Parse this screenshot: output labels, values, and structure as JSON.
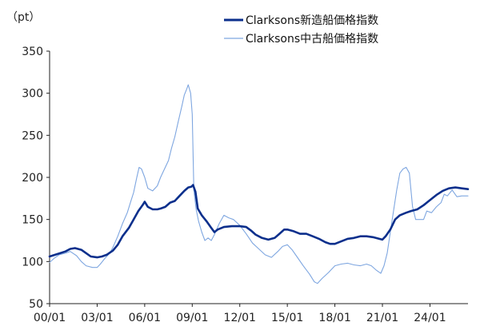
{
  "chart_data": {
    "type": "line",
    "title": "",
    "unit_label": "（pt）",
    "xlabel": "",
    "ylabel": "",
    "xlim": [
      2000.0,
      2026.4
    ],
    "ylim": [
      50,
      350
    ],
    "y_ticks": [
      50,
      100,
      150,
      200,
      250,
      300,
      350
    ],
    "x_ticks": [
      {
        "x": 2000.0,
        "label": "00/01"
      },
      {
        "x": 2003.0,
        "label": "03/01"
      },
      {
        "x": 2006.0,
        "label": "06/01"
      },
      {
        "x": 2009.0,
        "label": "09/01"
      },
      {
        "x": 2012.0,
        "label": "12/01"
      },
      {
        "x": 2015.0,
        "label": "15/01"
      },
      {
        "x": 2018.0,
        "label": "18/01"
      },
      {
        "x": 2021.0,
        "label": "21/01"
      },
      {
        "x": 2024.0,
        "label": "24/01"
      }
    ],
    "grid": false,
    "legend_position": "top-right",
    "series": [
      {
        "name": "Clarksons新造船価格指数",
        "color": "#0b2f8c",
        "style": "thick",
        "points": [
          [
            2000.0,
            106
          ],
          [
            2000.5,
            109
          ],
          [
            2001.0,
            112
          ],
          [
            2001.3,
            115
          ],
          [
            2001.6,
            116
          ],
          [
            2002.0,
            114
          ],
          [
            2002.3,
            110
          ],
          [
            2002.6,
            106
          ],
          [
            2003.0,
            105
          ],
          [
            2003.3,
            106
          ],
          [
            2003.6,
            108
          ],
          [
            2004.0,
            113
          ],
          [
            2004.3,
            120
          ],
          [
            2004.6,
            130
          ],
          [
            2005.0,
            140
          ],
          [
            2005.3,
            150
          ],
          [
            2005.6,
            160
          ],
          [
            2005.9,
            168
          ],
          [
            2006.0,
            171
          ],
          [
            2006.2,
            165
          ],
          [
            2006.5,
            162
          ],
          [
            2006.8,
            162
          ],
          [
            2007.0,
            163
          ],
          [
            2007.3,
            165
          ],
          [
            2007.6,
            170
          ],
          [
            2007.9,
            172
          ],
          [
            2008.2,
            178
          ],
          [
            2008.5,
            184
          ],
          [
            2008.75,
            188
          ],
          [
            2008.95,
            189
          ],
          [
            2009.05,
            191
          ],
          [
            2009.2,
            183
          ],
          [
            2009.35,
            163
          ],
          [
            2009.6,
            155
          ],
          [
            2009.9,
            148
          ],
          [
            2010.2,
            140
          ],
          [
            2010.4,
            135
          ],
          [
            2010.6,
            138
          ],
          [
            2011.0,
            141
          ],
          [
            2011.5,
            142
          ],
          [
            2012.0,
            142
          ],
          [
            2012.4,
            141
          ],
          [
            2012.7,
            137
          ],
          [
            2013.0,
            132
          ],
          [
            2013.4,
            128
          ],
          [
            2013.8,
            126
          ],
          [
            2014.2,
            128
          ],
          [
            2014.5,
            133
          ],
          [
            2014.8,
            138
          ],
          [
            2015.0,
            138
          ],
          [
            2015.4,
            136
          ],
          [
            2015.8,
            133
          ],
          [
            2016.2,
            133
          ],
          [
            2016.6,
            130
          ],
          [
            2017.0,
            127
          ],
          [
            2017.4,
            123
          ],
          [
            2017.7,
            121
          ],
          [
            2018.0,
            121
          ],
          [
            2018.4,
            124
          ],
          [
            2018.8,
            127
          ],
          [
            2019.2,
            128
          ],
          [
            2019.6,
            130
          ],
          [
            2020.0,
            130
          ],
          [
            2020.4,
            129
          ],
          [
            2020.8,
            127
          ],
          [
            2021.0,
            126
          ],
          [
            2021.2,
            130
          ],
          [
            2021.5,
            138
          ],
          [
            2021.8,
            150
          ],
          [
            2022.1,
            155
          ],
          [
            2022.5,
            158
          ],
          [
            2022.8,
            160
          ],
          [
            2023.2,
            162
          ],
          [
            2023.6,
            167
          ],
          [
            2024.0,
            173
          ],
          [
            2024.4,
            179
          ],
          [
            2024.8,
            184
          ],
          [
            2025.2,
            187
          ],
          [
            2025.6,
            188
          ],
          [
            2026.0,
            187
          ],
          [
            2026.4,
            186
          ]
        ]
      },
      {
        "name": "Clarksons中古船価格指数",
        "color": "#7ea6e0",
        "style": "thin",
        "points": [
          [
            2000.0,
            99
          ],
          [
            2000.3,
            104
          ],
          [
            2000.6,
            108
          ],
          [
            2001.0,
            110
          ],
          [
            2001.3,
            112
          ],
          [
            2001.7,
            107
          ],
          [
            2002.0,
            100
          ],
          [
            2002.3,
            95
          ],
          [
            2002.7,
            93
          ],
          [
            2003.0,
            93
          ],
          [
            2003.2,
            97
          ],
          [
            2003.5,
            104
          ],
          [
            2003.8,
            110
          ],
          [
            2004.0,
            117
          ],
          [
            2004.3,
            130
          ],
          [
            2004.6,
            145
          ],
          [
            2004.9,
            158
          ],
          [
            2005.1,
            170
          ],
          [
            2005.3,
            182
          ],
          [
            2005.5,
            200
          ],
          [
            2005.65,
            212
          ],
          [
            2005.8,
            210
          ],
          [
            2006.0,
            200
          ],
          [
            2006.2,
            187
          ],
          [
            2006.5,
            184
          ],
          [
            2006.8,
            190
          ],
          [
            2007.0,
            200
          ],
          [
            2007.2,
            208
          ],
          [
            2007.5,
            220
          ],
          [
            2007.7,
            235
          ],
          [
            2007.9,
            248
          ],
          [
            2008.1,
            265
          ],
          [
            2008.35,
            285
          ],
          [
            2008.5,
            298
          ],
          [
            2008.65,
            305
          ],
          [
            2008.75,
            310
          ],
          [
            2008.9,
            300
          ],
          [
            2009.0,
            275
          ],
          [
            2009.1,
            185
          ],
          [
            2009.25,
            162
          ],
          [
            2009.4,
            148
          ],
          [
            2009.6,
            135
          ],
          [
            2009.8,
            125
          ],
          [
            2010.0,
            128
          ],
          [
            2010.2,
            125
          ],
          [
            2010.4,
            132
          ],
          [
            2010.7,
            145
          ],
          [
            2011.0,
            155
          ],
          [
            2011.3,
            152
          ],
          [
            2011.6,
            150
          ],
          [
            2012.0,
            143
          ],
          [
            2012.4,
            133
          ],
          [
            2012.8,
            122
          ],
          [
            2013.2,
            115
          ],
          [
            2013.6,
            108
          ],
          [
            2014.0,
            105
          ],
          [
            2014.4,
            112
          ],
          [
            2014.7,
            118
          ],
          [
            2015.0,
            120
          ],
          [
            2015.3,
            114
          ],
          [
            2015.6,
            106
          ],
          [
            2016.0,
            95
          ],
          [
            2016.4,
            85
          ],
          [
            2016.7,
            76
          ],
          [
            2016.9,
            74
          ],
          [
            2017.2,
            80
          ],
          [
            2017.6,
            87
          ],
          [
            2018.0,
            95
          ],
          [
            2018.4,
            97
          ],
          [
            2018.8,
            98
          ],
          [
            2019.2,
            96
          ],
          [
            2019.6,
            95
          ],
          [
            2020.0,
            97
          ],
          [
            2020.3,
            95
          ],
          [
            2020.6,
            90
          ],
          [
            2020.9,
            86
          ],
          [
            2021.1,
            95
          ],
          [
            2021.3,
            110
          ],
          [
            2021.5,
            135
          ],
          [
            2021.7,
            160
          ],
          [
            2021.9,
            185
          ],
          [
            2022.1,
            205
          ],
          [
            2022.3,
            210
          ],
          [
            2022.5,
            212
          ],
          [
            2022.7,
            205
          ],
          [
            2022.9,
            165
          ],
          [
            2023.1,
            150
          ],
          [
            2023.3,
            150
          ],
          [
            2023.6,
            150
          ],
          [
            2023.8,
            160
          ],
          [
            2024.1,
            158
          ],
          [
            2024.4,
            165
          ],
          [
            2024.7,
            170
          ],
          [
            2024.9,
            180
          ],
          [
            2025.1,
            178
          ],
          [
            2025.4,
            185
          ],
          [
            2025.7,
            177
          ],
          [
            2026.0,
            178
          ],
          [
            2026.4,
            178
          ]
        ]
      }
    ]
  }
}
